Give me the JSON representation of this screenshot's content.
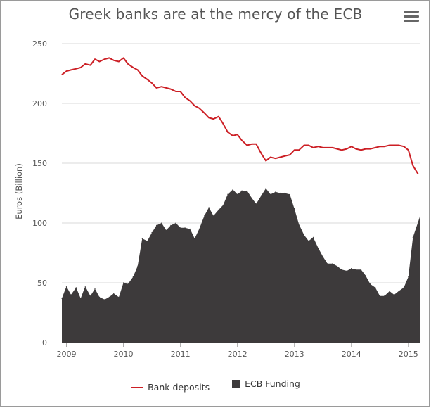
{
  "chart_data": {
    "type": "line",
    "title": "Greek banks are at the mercy of the ECB",
    "xlabel": "",
    "ylabel": "Euros (Billion)",
    "ylim": [
      0,
      250
    ],
    "yticks": [
      0,
      50,
      100,
      150,
      200,
      250
    ],
    "xlim": [
      2008.92,
      2015.2
    ],
    "xticks": [
      2009,
      2010,
      2011,
      2012,
      2013,
      2014,
      2015
    ],
    "grid": "horizontal",
    "legend_position": "bottom",
    "series": [
      {
        "name": "Bank deposits",
        "type": "line",
        "color": "#cc1f25",
        "points": [
          [
            2008.92,
            224
          ],
          [
            2009.0,
            227
          ],
          [
            2009.08,
            228
          ],
          [
            2009.17,
            229
          ],
          [
            2009.25,
            230
          ],
          [
            2009.33,
            233
          ],
          [
            2009.42,
            232
          ],
          [
            2009.5,
            237
          ],
          [
            2009.58,
            235
          ],
          [
            2009.67,
            237
          ],
          [
            2009.75,
            238
          ],
          [
            2009.83,
            236
          ],
          [
            2009.92,
            235
          ],
          [
            2010.0,
            238
          ],
          [
            2010.08,
            233
          ],
          [
            2010.17,
            230
          ],
          [
            2010.25,
            228
          ],
          [
            2010.33,
            223
          ],
          [
            2010.42,
            220
          ],
          [
            2010.5,
            217
          ],
          [
            2010.58,
            213
          ],
          [
            2010.67,
            214
          ],
          [
            2010.75,
            213
          ],
          [
            2010.83,
            212
          ],
          [
            2010.92,
            210
          ],
          [
            2011.0,
            210
          ],
          [
            2011.08,
            205
          ],
          [
            2011.17,
            202
          ],
          [
            2011.25,
            198
          ],
          [
            2011.33,
            196
          ],
          [
            2011.42,
            192
          ],
          [
            2011.5,
            188
          ],
          [
            2011.58,
            187
          ],
          [
            2011.67,
            189
          ],
          [
            2011.75,
            183
          ],
          [
            2011.83,
            176
          ],
          [
            2011.92,
            173
          ],
          [
            2012.0,
            174
          ],
          [
            2012.08,
            169
          ],
          [
            2012.17,
            165
          ],
          [
            2012.25,
            166
          ],
          [
            2012.33,
            166
          ],
          [
            2012.42,
            158
          ],
          [
            2012.5,
            152
          ],
          [
            2012.58,
            155
          ],
          [
            2012.67,
            154
          ],
          [
            2012.75,
            155
          ],
          [
            2012.83,
            156
          ],
          [
            2012.92,
            157
          ],
          [
            2013.0,
            161
          ],
          [
            2013.08,
            161
          ],
          [
            2013.17,
            165
          ],
          [
            2013.25,
            165
          ],
          [
            2013.33,
            163
          ],
          [
            2013.42,
            164
          ],
          [
            2013.5,
            163
          ],
          [
            2013.58,
            163
          ],
          [
            2013.67,
            163
          ],
          [
            2013.75,
            162
          ],
          [
            2013.83,
            161
          ],
          [
            2013.92,
            162
          ],
          [
            2014.0,
            164
          ],
          [
            2014.08,
            162
          ],
          [
            2014.17,
            161
          ],
          [
            2014.25,
            162
          ],
          [
            2014.33,
            162
          ],
          [
            2014.42,
            163
          ],
          [
            2014.5,
            164
          ],
          [
            2014.58,
            164
          ],
          [
            2014.67,
            165
          ],
          [
            2014.75,
            165
          ],
          [
            2014.83,
            165
          ],
          [
            2014.92,
            164
          ],
          [
            2015.0,
            161
          ],
          [
            2015.08,
            148
          ],
          [
            2015.17,
            141
          ]
        ]
      },
      {
        "name": "ECB Funding",
        "type": "area",
        "color": "#3d3a3b",
        "points": [
          [
            2008.92,
            37
          ],
          [
            2009.0,
            47
          ],
          [
            2009.08,
            40
          ],
          [
            2009.17,
            46
          ],
          [
            2009.25,
            37
          ],
          [
            2009.33,
            47
          ],
          [
            2009.42,
            39
          ],
          [
            2009.5,
            45
          ],
          [
            2009.58,
            38
          ],
          [
            2009.67,
            36
          ],
          [
            2009.75,
            38
          ],
          [
            2009.83,
            41
          ],
          [
            2009.92,
            38
          ],
          [
            2010.0,
            50
          ],
          [
            2010.08,
            49
          ],
          [
            2010.17,
            55
          ],
          [
            2010.25,
            64
          ],
          [
            2010.33,
            87
          ],
          [
            2010.42,
            85
          ],
          [
            2010.5,
            92
          ],
          [
            2010.58,
            98
          ],
          [
            2010.67,
            100
          ],
          [
            2010.75,
            94
          ],
          [
            2010.83,
            98
          ],
          [
            2010.92,
            100
          ],
          [
            2011.0,
            96
          ],
          [
            2011.08,
            96
          ],
          [
            2011.17,
            95
          ],
          [
            2011.25,
            87
          ],
          [
            2011.33,
            95
          ],
          [
            2011.42,
            106
          ],
          [
            2011.5,
            113
          ],
          [
            2011.58,
            106
          ],
          [
            2011.67,
            111
          ],
          [
            2011.75,
            115
          ],
          [
            2011.83,
            124
          ],
          [
            2011.92,
            128
          ],
          [
            2012.0,
            124
          ],
          [
            2012.08,
            127
          ],
          [
            2012.17,
            127
          ],
          [
            2012.25,
            121
          ],
          [
            2012.33,
            116
          ],
          [
            2012.42,
            123
          ],
          [
            2012.5,
            129
          ],
          [
            2012.58,
            124
          ],
          [
            2012.67,
            126
          ],
          [
            2012.75,
            125
          ],
          [
            2012.83,
            125
          ],
          [
            2012.92,
            124
          ],
          [
            2013.0,
            112
          ],
          [
            2013.08,
            99
          ],
          [
            2013.17,
            90
          ],
          [
            2013.25,
            85
          ],
          [
            2013.33,
            88
          ],
          [
            2013.42,
            79
          ],
          [
            2013.5,
            72
          ],
          [
            2013.58,
            66
          ],
          [
            2013.67,
            66
          ],
          [
            2013.75,
            64
          ],
          [
            2013.83,
            61
          ],
          [
            2013.92,
            60
          ],
          [
            2014.0,
            62
          ],
          [
            2014.08,
            61
          ],
          [
            2014.17,
            61
          ],
          [
            2014.25,
            56
          ],
          [
            2014.33,
            49
          ],
          [
            2014.42,
            46
          ],
          [
            2014.5,
            39
          ],
          [
            2014.58,
            39
          ],
          [
            2014.67,
            43
          ],
          [
            2014.75,
            40
          ],
          [
            2014.83,
            43
          ],
          [
            2014.92,
            46
          ],
          [
            2015.0,
            55
          ],
          [
            2015.08,
            88
          ],
          [
            2015.2,
            105
          ]
        ]
      }
    ]
  },
  "legend": {
    "bank_deposits": "Bank deposits",
    "ecb_funding": "ECB Funding"
  },
  "menu_icon": "hamburger-menu-icon"
}
